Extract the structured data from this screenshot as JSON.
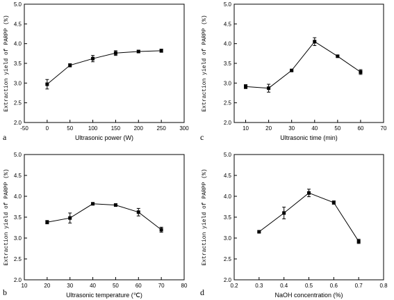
{
  "chart_data": [
    {
      "panel": "a",
      "type": "line",
      "xlabel": "Ultrasonic power (W)",
      "ylabel": "Extraction yield of PARPP (%)",
      "xlim": [
        -50,
        300
      ],
      "ylim": [
        2.0,
        5.0
      ],
      "xticks": [
        -50,
        0,
        50,
        100,
        150,
        200,
        250,
        300
      ],
      "yticks": [
        "2.0",
        "2.5",
        "3.0",
        "3.5",
        "4.0",
        "4.5",
        "5.0"
      ],
      "x": [
        0,
        50,
        100,
        150,
        200,
        250
      ],
      "y": [
        2.97,
        3.45,
        3.62,
        3.76,
        3.8,
        3.82
      ],
      "err": [
        0.12,
        0.04,
        0.08,
        0.06,
        0.03,
        0.04
      ]
    },
    {
      "panel": "c",
      "type": "line",
      "xlabel": "Ultrasonic time (min)",
      "ylabel": "Extraction yield of PARPP (%)",
      "xlim": [
        5,
        70
      ],
      "ylim": [
        2.0,
        5.0
      ],
      "xticks": [
        10,
        20,
        30,
        40,
        50,
        60,
        70
      ],
      "yticks": [
        "2.0",
        "2.5",
        "3.0",
        "3.5",
        "4.0",
        "4.5",
        "5.0"
      ],
      "x": [
        10,
        20,
        30,
        40,
        50,
        60
      ],
      "y": [
        2.91,
        2.87,
        3.32,
        4.05,
        3.68,
        3.28
      ],
      "err": [
        0.05,
        0.1,
        0.02,
        0.1,
        0.02,
        0.06
      ]
    },
    {
      "panel": "b",
      "type": "line",
      "xlabel": "Ultrasonic temperature (℃)",
      "ylabel": "Extraction yield of PARPP (%)",
      "xlim": [
        10,
        80
      ],
      "ylim": [
        2.0,
        5.0
      ],
      "xticks": [
        10,
        20,
        30,
        40,
        50,
        60,
        70,
        80
      ],
      "yticks": [
        "2.0",
        "2.5",
        "3.0",
        "3.5",
        "4.0",
        "4.5",
        "5.0"
      ],
      "x": [
        20,
        30,
        40,
        50,
        60,
        70
      ],
      "y": [
        3.38,
        3.48,
        3.82,
        3.79,
        3.62,
        3.2
      ],
      "err": [
        0.04,
        0.12,
        0.02,
        0.03,
        0.09,
        0.06
      ]
    },
    {
      "panel": "d",
      "type": "line",
      "xlabel": "NaOH concentration (%)",
      "ylabel": "Extraction yield of PARPP (%)",
      "xlim": [
        0.2,
        0.8
      ],
      "ylim": [
        2.0,
        5.0
      ],
      "xticks": [
        "0.2",
        "0.3",
        "0.4",
        "0.5",
        "0.6",
        "0.7",
        "0.8"
      ],
      "yticks": [
        "2.0",
        "2.5",
        "3.0",
        "3.5",
        "4.0",
        "4.5",
        "5.0"
      ],
      "x": [
        0.3,
        0.4,
        0.5,
        0.6,
        0.7
      ],
      "y": [
        3.15,
        3.6,
        4.08,
        3.85,
        2.92
      ],
      "err": [
        0.02,
        0.14,
        0.09,
        0.04,
        0.05
      ]
    }
  ]
}
